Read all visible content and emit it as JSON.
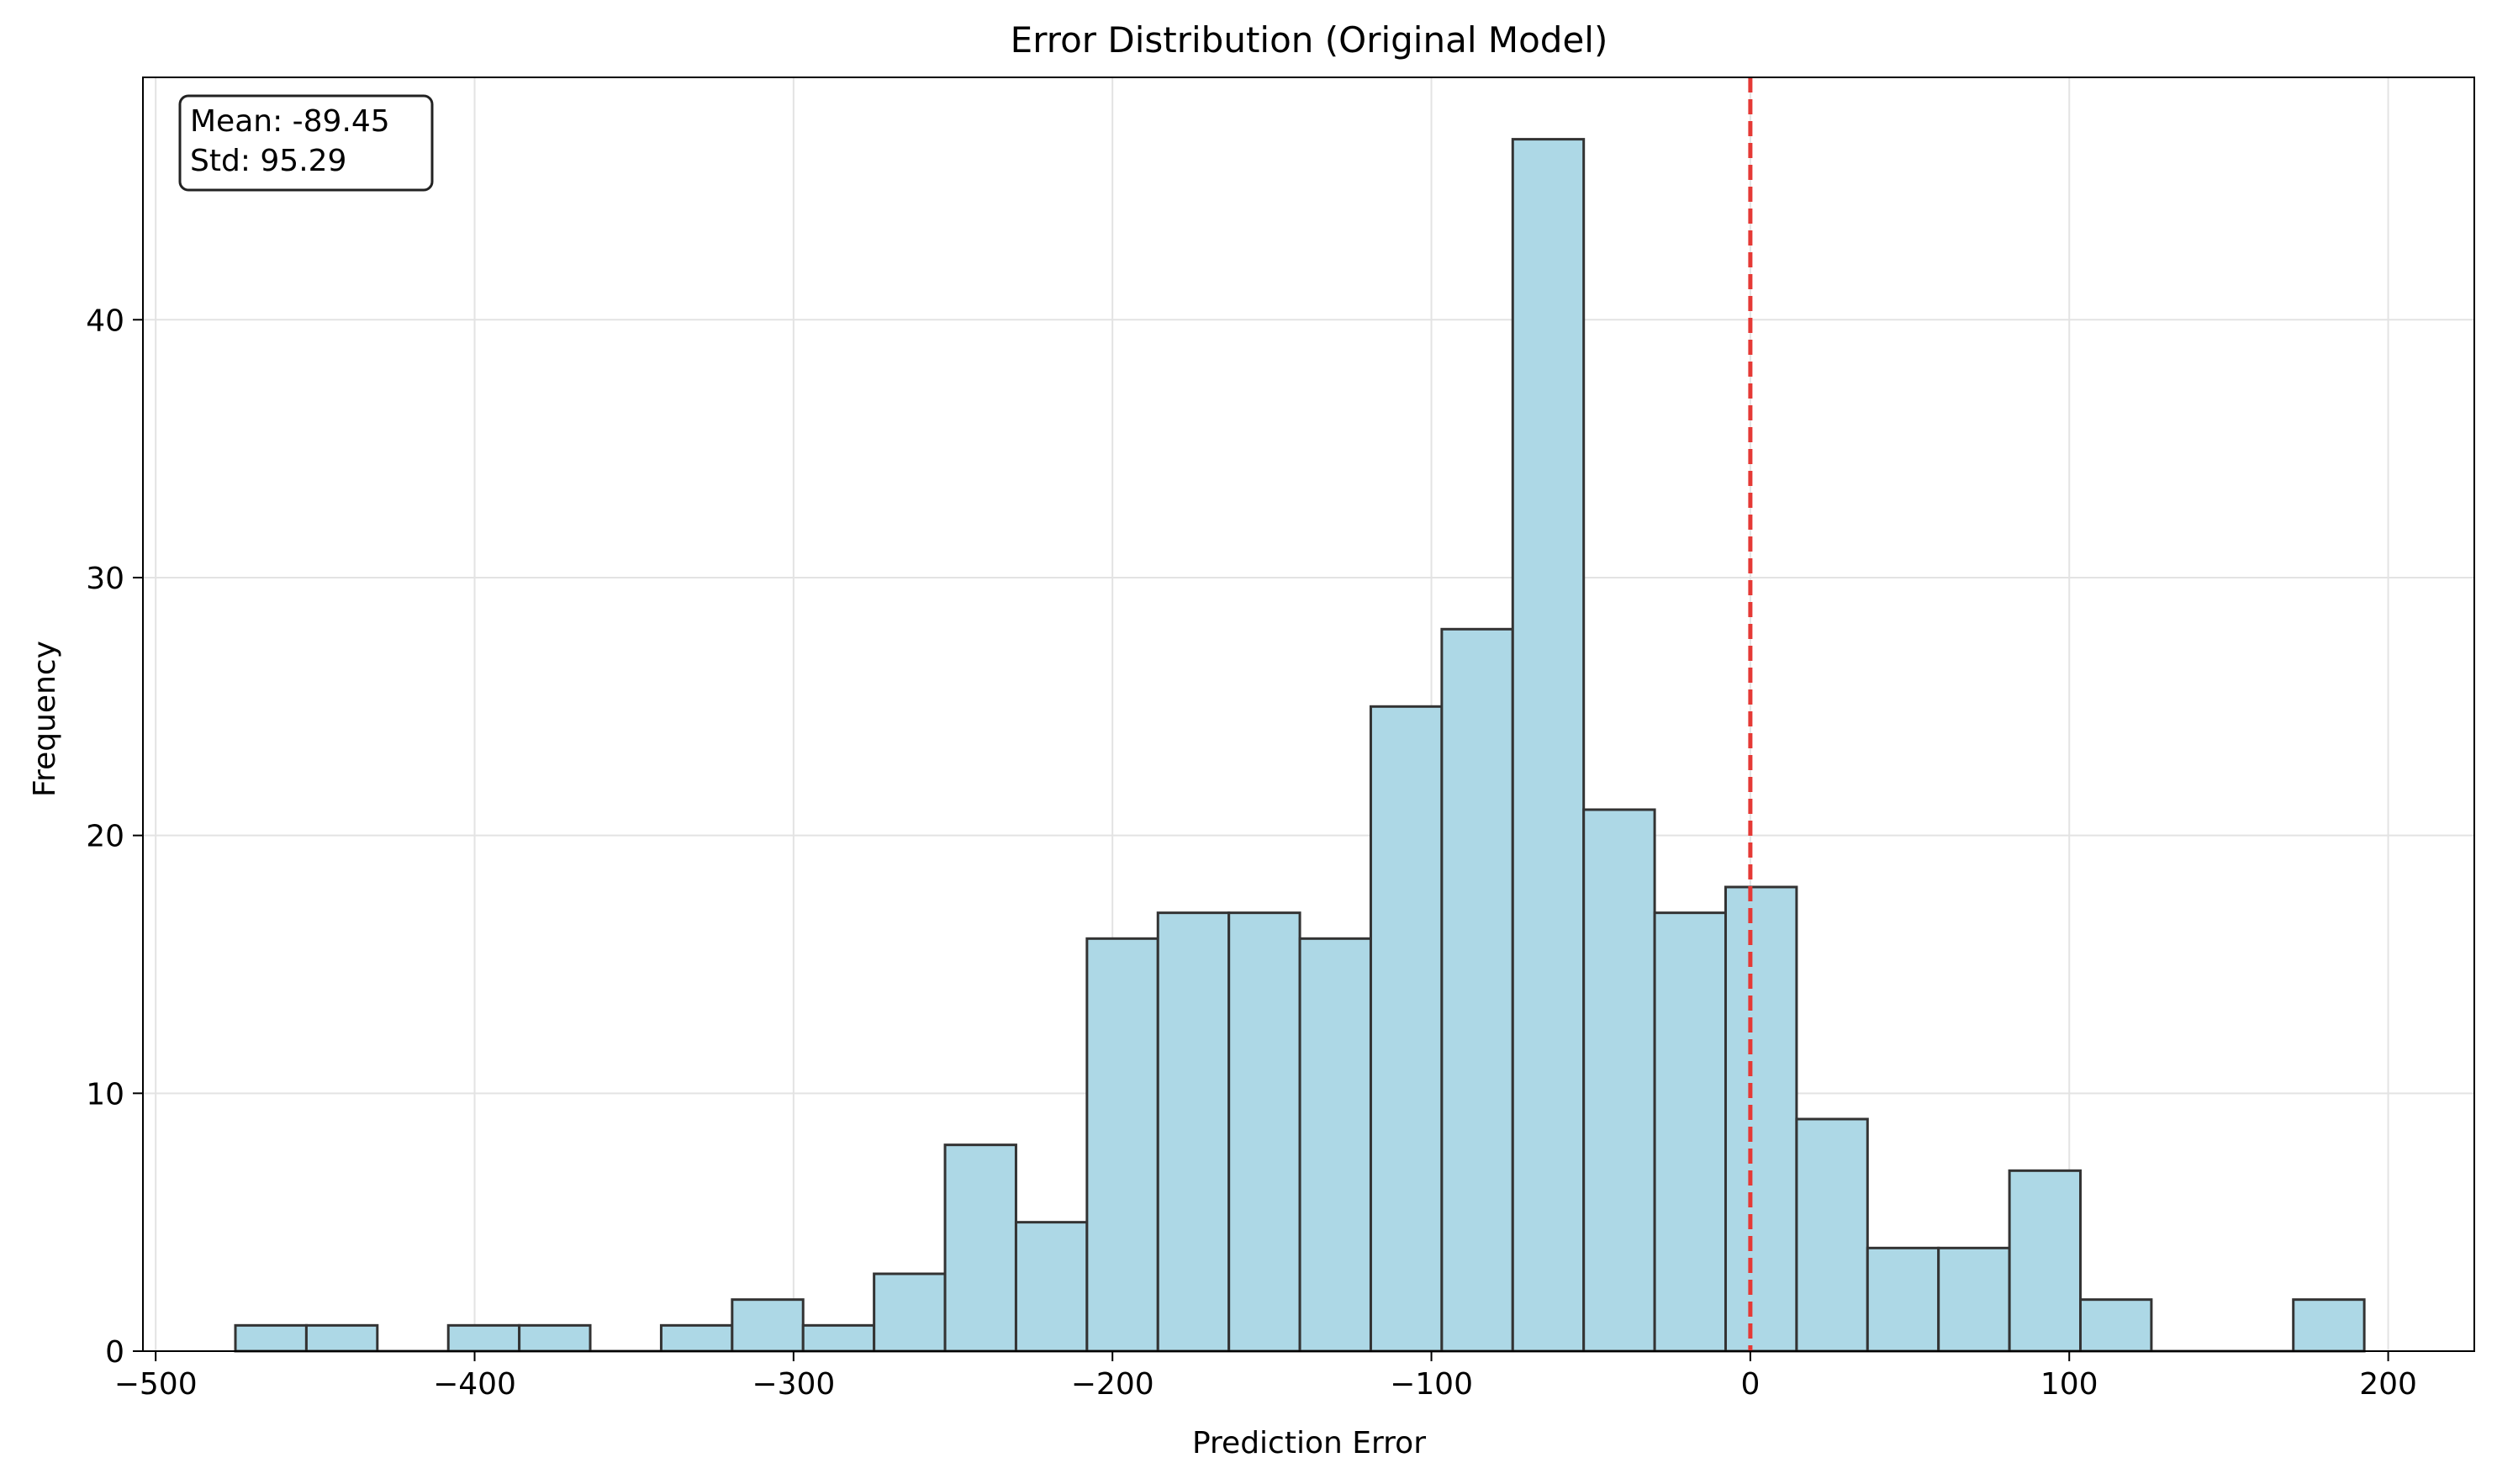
{
  "chart_data": {
    "type": "bar",
    "title": "Error Distribution  (Original Model)",
    "xlabel": "Prediction Error",
    "ylabel": "Frequency",
    "xlim": [
      -504,
      227
    ],
    "ylim": [
      0,
      49.4
    ],
    "xticks": [
      -500,
      -400,
      -300,
      -200,
      -100,
      0,
      100,
      200
    ],
    "xtick_labels": [
      "−500",
      "−400",
      "−300",
      "−200",
      "−100",
      "0",
      "100",
      "200"
    ],
    "yticks": [
      0,
      10,
      20,
      30,
      40
    ],
    "ytick_labels": [
      "0",
      "10",
      "20",
      "30",
      "40"
    ],
    "grid": true,
    "bin_start": -475,
    "bin_width": 22.25,
    "counts": [
      1,
      1,
      0,
      1,
      1,
      0,
      1,
      2,
      1,
      3,
      8,
      5,
      16,
      17,
      17,
      16,
      25,
      28,
      47,
      21,
      17,
      18,
      9,
      4,
      4,
      7,
      2,
      0,
      0,
      2
    ],
    "bar_color": "#add8e6",
    "bar_edge_color": "#333333",
    "reference_line": {
      "x": 0,
      "color": "#e53935",
      "style": "dashed"
    },
    "annotation": {
      "lines": [
        "Mean: -89.45",
        "Std: 95.29"
      ],
      "placement": "top-left"
    }
  }
}
